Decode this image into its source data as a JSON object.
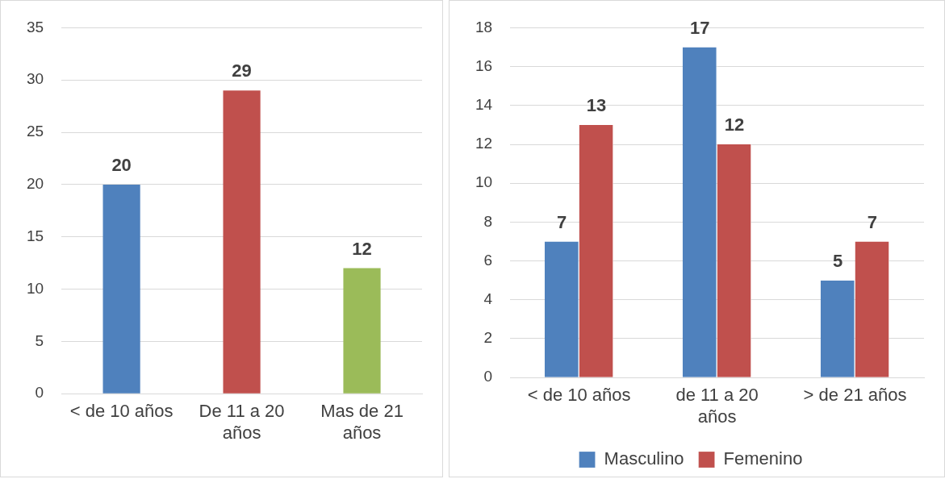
{
  "chart_data": [
    {
      "type": "bar",
      "categories": [
        "< de 10 años",
        "De 11 a 20 años",
        "Mas de 21 años"
      ],
      "values": [
        20,
        29,
        12
      ],
      "colors": [
        "#4f81bd",
        "#c0504d",
        "#9bbb59"
      ],
      "ylim": [
        0,
        35
      ],
      "yticks": [
        0,
        5,
        10,
        15,
        20,
        25,
        30,
        35
      ],
      "grid": "y",
      "data_labels": true,
      "legend": false
    },
    {
      "type": "bar",
      "categories": [
        "< de 10 años",
        "de 11 a 20 años",
        "> de 21 años"
      ],
      "series": [
        {
          "name": "Masculino",
          "color": "#4f81bd",
          "values": [
            7,
            17,
            5
          ]
        },
        {
          "name": "Femenino",
          "color": "#c0504d",
          "values": [
            13,
            12,
            7
          ]
        }
      ],
      "ylim": [
        0,
        18
      ],
      "yticks": [
        0,
        2,
        4,
        6,
        8,
        10,
        12,
        14,
        16,
        18
      ],
      "grid": "y",
      "data_labels": true,
      "legend": "bottom"
    }
  ]
}
